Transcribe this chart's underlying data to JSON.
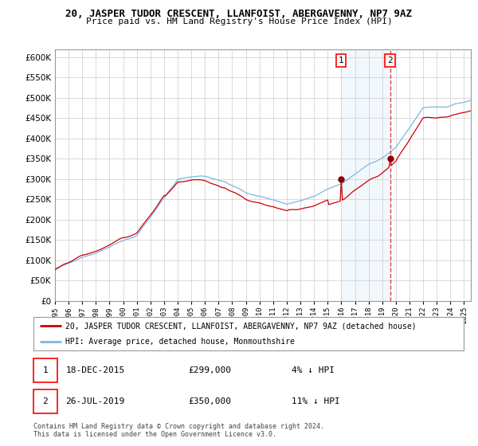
{
  "title": "20, JASPER TUDOR CRESCENT, LLANFOIST, ABERGAVENNY, NP7 9AZ",
  "subtitle": "Price paid vs. HM Land Registry's House Price Index (HPI)",
  "ylim": [
    0,
    620000
  ],
  "yticks": [
    0,
    50000,
    100000,
    150000,
    200000,
    250000,
    300000,
    350000,
    400000,
    450000,
    500000,
    550000,
    600000
  ],
  "hpi_color": "#7ab8e0",
  "price_color": "#cc0000",
  "point1_date_num": 2015.97,
  "point1_price": 299000,
  "point2_date_num": 2019.57,
  "point2_price": 350000,
  "legend_line1": "20, JASPER TUDOR CRESCENT, LLANFOIST, ABERGAVENNY, NP7 9AZ (detached house)",
  "legend_line2": "HPI: Average price, detached house, Monmouthshire",
  "footer": "Contains HM Land Registry data © Crown copyright and database right 2024.\nThis data is licensed under the Open Government Licence v3.0.",
  "shaded_start": 2015.97,
  "shaded_end": 2019.57,
  "xmin": 1995.0,
  "xmax": 2025.5
}
